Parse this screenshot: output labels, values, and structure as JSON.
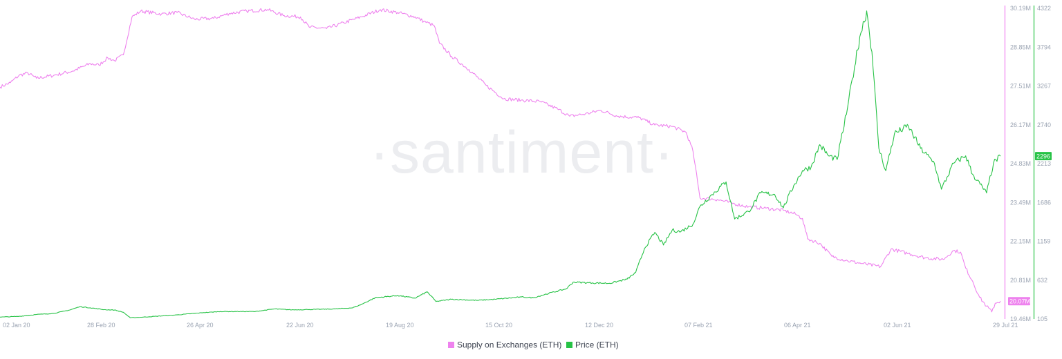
{
  "watermark": "·santiment·",
  "colors": {
    "supply": "#ee82ee",
    "price": "#26c245",
    "axis_text": "#9aa3b2",
    "badge_text": "#ffffff"
  },
  "chart_data": {
    "type": "line",
    "title": "",
    "xlabel": "",
    "grid": false,
    "legend_position": "bottom-center",
    "x_ticks": [
      "02 Jan 20",
      "28 Feb 20",
      "26 Apr 20",
      "22 Jun 20",
      "19 Aug 20",
      "15 Oct 20",
      "12 Dec 20",
      "07 Feb 21",
      "06 Apr 21",
      "02 Jun 21",
      "29 Jul 21"
    ],
    "x_range": [
      "2019-12-30",
      "2021-07-30"
    ],
    "supply_axis": {
      "range": [
        19.46,
        30.19
      ],
      "unit": "M",
      "ticks": [
        "30.19M",
        "28.85M",
        "27.51M",
        "26.17M",
        "24.83M",
        "23.49M",
        "22.15M",
        "20.81M",
        "19.46M"
      ]
    },
    "price_axis": {
      "range": [
        105,
        4322
      ],
      "ticks": [
        "4322",
        "3794",
        "3267",
        "2740",
        "2213",
        "1686",
        "1159",
        "632",
        "105"
      ]
    },
    "series": [
      {
        "name": "Supply on Exchanges (ETH)",
        "axis": "supply",
        "last_value_label": "20.07M",
        "points": [
          [
            "2019-12-30",
            27.4
          ],
          [
            "2020-01-05",
            27.55
          ],
          [
            "2020-01-10",
            27.8
          ],
          [
            "2020-01-15",
            27.88
          ],
          [
            "2020-01-20",
            27.7
          ],
          [
            "2020-01-30",
            27.8
          ],
          [
            "2020-02-10",
            27.95
          ],
          [
            "2020-02-20",
            28.2
          ],
          [
            "2020-02-25",
            28.15
          ],
          [
            "2020-03-01",
            28.4
          ],
          [
            "2020-03-05",
            28.3
          ],
          [
            "2020-03-10",
            28.5
          ],
          [
            "2020-03-15",
            29.8
          ],
          [
            "2020-03-20",
            30.0
          ],
          [
            "2020-04-01",
            29.9
          ],
          [
            "2020-04-10",
            29.95
          ],
          [
            "2020-04-20",
            29.72
          ],
          [
            "2020-05-01",
            29.75
          ],
          [
            "2020-05-10",
            29.92
          ],
          [
            "2020-05-20",
            30.0
          ],
          [
            "2020-06-01",
            30.05
          ],
          [
            "2020-06-10",
            29.85
          ],
          [
            "2020-06-20",
            29.8
          ],
          [
            "2020-06-25",
            29.45
          ],
          [
            "2020-07-05",
            29.4
          ],
          [
            "2020-07-15",
            29.6
          ],
          [
            "2020-07-25",
            29.8
          ],
          [
            "2020-08-05",
            30.05
          ],
          [
            "2020-08-15",
            29.95
          ],
          [
            "2020-08-25",
            29.8
          ],
          [
            "2020-08-30",
            29.65
          ],
          [
            "2020-09-05",
            29.5
          ],
          [
            "2020-09-08",
            28.9
          ],
          [
            "2020-09-15",
            28.45
          ],
          [
            "2020-09-25",
            28.0
          ],
          [
            "2020-10-05",
            27.45
          ],
          [
            "2020-10-15",
            27.0
          ],
          [
            "2020-10-25",
            26.95
          ],
          [
            "2020-11-05",
            26.9
          ],
          [
            "2020-11-15",
            26.65
          ],
          [
            "2020-11-22",
            26.4
          ],
          [
            "2020-12-01",
            26.48
          ],
          [
            "2020-12-10",
            26.6
          ],
          [
            "2020-12-20",
            26.4
          ],
          [
            "2021-01-01",
            26.35
          ],
          [
            "2021-01-10",
            26.1
          ],
          [
            "2021-01-20",
            26.05
          ],
          [
            "2021-01-28",
            25.85
          ],
          [
            "2021-02-01",
            25.2
          ],
          [
            "2021-02-05",
            23.6
          ],
          [
            "2021-02-15",
            23.55
          ],
          [
            "2021-02-25",
            23.4
          ],
          [
            "2021-03-05",
            23.3
          ],
          [
            "2021-03-15",
            23.25
          ],
          [
            "2021-03-25",
            23.18
          ],
          [
            "2021-04-01",
            23.05
          ],
          [
            "2021-04-05",
            22.9
          ],
          [
            "2021-04-08",
            22.2
          ],
          [
            "2021-04-15",
            22.05
          ],
          [
            "2021-04-22",
            21.6
          ],
          [
            "2021-05-01",
            21.45
          ],
          [
            "2021-05-10",
            21.35
          ],
          [
            "2021-05-20",
            21.25
          ],
          [
            "2021-05-26",
            21.85
          ],
          [
            "2021-06-05",
            21.7
          ],
          [
            "2021-06-15",
            21.55
          ],
          [
            "2021-06-25",
            21.5
          ],
          [
            "2021-07-01",
            21.8
          ],
          [
            "2021-07-05",
            21.75
          ],
          [
            "2021-07-08",
            21.2
          ],
          [
            "2021-07-12",
            20.75
          ],
          [
            "2021-07-16",
            20.2
          ],
          [
            "2021-07-20",
            19.9
          ],
          [
            "2021-07-23",
            19.7
          ],
          [
            "2021-07-25",
            20.0
          ],
          [
            "2021-07-28",
            20.07
          ]
        ]
      },
      {
        "name": "Price (ETH)",
        "axis": "price",
        "last_value_label": "2296",
        "points": [
          [
            "2019-12-30",
            130
          ],
          [
            "2020-01-10",
            140
          ],
          [
            "2020-01-20",
            165
          ],
          [
            "2020-01-30",
            180
          ],
          [
            "2020-02-08",
            225
          ],
          [
            "2020-02-14",
            270
          ],
          [
            "2020-02-20",
            255
          ],
          [
            "2020-02-28",
            230
          ],
          [
            "2020-03-05",
            225
          ],
          [
            "2020-03-10",
            195
          ],
          [
            "2020-03-14",
            120
          ],
          [
            "2020-03-25",
            135
          ],
          [
            "2020-04-10",
            160
          ],
          [
            "2020-04-25",
            190
          ],
          [
            "2020-05-05",
            205
          ],
          [
            "2020-05-25",
            205
          ],
          [
            "2020-06-05",
            240
          ],
          [
            "2020-06-15",
            228
          ],
          [
            "2020-06-25",
            232
          ],
          [
            "2020-07-10",
            240
          ],
          [
            "2020-07-20",
            255
          ],
          [
            "2020-07-25",
            300
          ],
          [
            "2020-08-02",
            390
          ],
          [
            "2020-08-15",
            420
          ],
          [
            "2020-08-25",
            385
          ],
          [
            "2020-09-01",
            470
          ],
          [
            "2020-09-06",
            340
          ],
          [
            "2020-09-15",
            370
          ],
          [
            "2020-09-30",
            355
          ],
          [
            "2020-10-10",
            370
          ],
          [
            "2020-10-25",
            400
          ],
          [
            "2020-11-01",
            390
          ],
          [
            "2020-11-10",
            450
          ],
          [
            "2020-11-20",
            510
          ],
          [
            "2020-11-24",
            600
          ],
          [
            "2020-12-05",
            590
          ],
          [
            "2020-12-15",
            585
          ],
          [
            "2020-12-25",
            640
          ],
          [
            "2020-12-30",
            730
          ],
          [
            "2021-01-04",
            1050
          ],
          [
            "2021-01-10",
            1270
          ],
          [
            "2021-01-15",
            1100
          ],
          [
            "2021-01-20",
            1300
          ],
          [
            "2021-01-25",
            1280
          ],
          [
            "2021-02-01",
            1380
          ],
          [
            "2021-02-05",
            1620
          ],
          [
            "2021-02-12",
            1780
          ],
          [
            "2021-02-20",
            1950
          ],
          [
            "2021-02-25",
            1450
          ],
          [
            "2021-03-05",
            1550
          ],
          [
            "2021-03-12",
            1800
          ],
          [
            "2021-03-20",
            1780
          ],
          [
            "2021-03-25",
            1600
          ],
          [
            "2021-03-31",
            1900
          ],
          [
            "2021-04-05",
            2100
          ],
          [
            "2021-04-10",
            2150
          ],
          [
            "2021-04-15",
            2450
          ],
          [
            "2021-04-20",
            2300
          ],
          [
            "2021-04-25",
            2250
          ],
          [
            "2021-05-01",
            2950
          ],
          [
            "2021-05-05",
            3500
          ],
          [
            "2021-05-08",
            3900
          ],
          [
            "2021-05-12",
            4250
          ],
          [
            "2021-05-15",
            3700
          ],
          [
            "2021-05-19",
            2400
          ],
          [
            "2021-05-23",
            2100
          ],
          [
            "2021-05-28",
            2600
          ],
          [
            "2021-06-05",
            2700
          ],
          [
            "2021-06-12",
            2400
          ],
          [
            "2021-06-20",
            2200
          ],
          [
            "2021-06-24",
            1850
          ],
          [
            "2021-07-01",
            2200
          ],
          [
            "2021-07-08",
            2300
          ],
          [
            "2021-07-12",
            2050
          ],
          [
            "2021-07-20",
            1800
          ],
          [
            "2021-07-24",
            2200
          ],
          [
            "2021-07-28",
            2296
          ]
        ]
      }
    ]
  }
}
